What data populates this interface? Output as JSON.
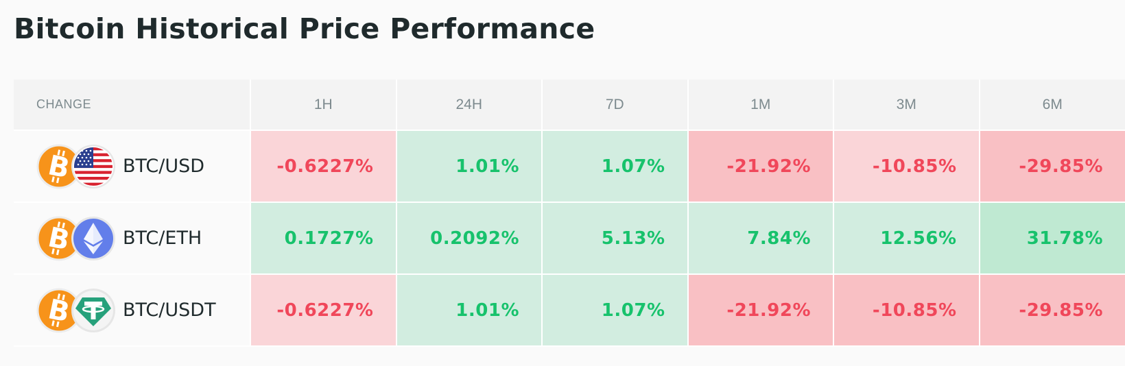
{
  "page": {
    "title": "Bitcoin Historical Price Performance"
  },
  "table": {
    "headers": [
      "CHANGE",
      "1H",
      "24H",
      "7D",
      "1M",
      "3M",
      "6M"
    ],
    "rows": [
      {
        "pair": "BTC/USD",
        "base_icon": "bitcoin-icon",
        "quote_icon": "us-flag-icon",
        "values": [
          "-0.6227%",
          "1.01%",
          "1.07%",
          "-21.92%",
          "-10.85%",
          "-29.85%"
        ]
      },
      {
        "pair": "BTC/ETH",
        "base_icon": "bitcoin-icon",
        "quote_icon": "ethereum-icon",
        "values": [
          "0.1727%",
          "0.2092%",
          "5.13%",
          "7.84%",
          "12.56%",
          "31.78%"
        ]
      },
      {
        "pair": "BTC/USDT",
        "base_icon": "bitcoin-icon",
        "quote_icon": "tether-icon",
        "values": [
          "-0.6227%",
          "1.01%",
          "1.07%",
          "-21.92%",
          "-10.85%",
          "-29.85%"
        ]
      }
    ]
  },
  "colors": {
    "negative_text": "#f0475a",
    "positive_text": "#17c26c",
    "negative_light": "#fad5d8",
    "negative_medium": "#f9c0c4",
    "positive_light": "#d2ede0",
    "positive_medium": "#bfe9d2",
    "header_bg": "#f3f3f3",
    "bitcoin_orange": "#f7931a",
    "ethereum_blue": "#627eea",
    "tether_green": "#26a17b"
  },
  "cell_backgrounds": [
    [
      "negative_light",
      "positive_light",
      "positive_light",
      "negative_medium",
      "negative_light",
      "negative_medium"
    ],
    [
      "positive_light",
      "positive_light",
      "positive_light",
      "positive_light",
      "positive_light",
      "positive_medium"
    ],
    [
      "negative_light",
      "positive_light",
      "positive_light",
      "negative_medium",
      "negative_medium",
      "negative_medium"
    ]
  ]
}
